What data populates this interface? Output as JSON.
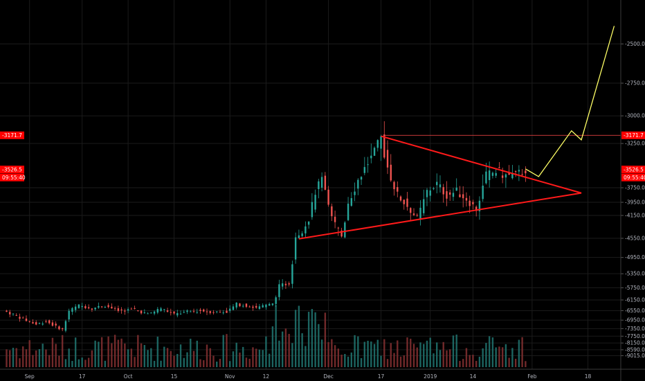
{
  "chart_data": {
    "type": "candlestick",
    "grid": true,
    "colors": {
      "background": "#000000",
      "up": "#26a69a",
      "down": "#ef5350",
      "volume_up": "#1f6f6a",
      "volume_down": "#7d2e2f",
      "grid": "#1b1b1b",
      "trendline": "#ff1a1a",
      "projection": "#ffff66",
      "level_line": "#e04040",
      "badge_bg": "#ff0000",
      "axis_text": "#b2b5be"
    },
    "y_scale": "reciprocal",
    "y_ticks": [
      "-2500.0",
      "-2750.0",
      "-3000.0",
      "-3250.0",
      "-3750.0",
      "-3950.0",
      "-4150.0",
      "-4550.0",
      "-4950.0",
      "-5350.0",
      "-5750.0",
      "-6150.0",
      "-6550.0",
      "-6950.0",
      "-7350.0",
      "-7750.0",
      "-8150.0",
      "-8590.0",
      "-9015.0"
    ],
    "x_ticks": [
      "Sep",
      "17",
      "Oct",
      "15",
      "Nov",
      "12",
      "Dec",
      "17",
      "2019",
      "14",
      "Feb",
      "18"
    ],
    "x_tick_dates": [
      "2018-09-01",
      "2018-09-17",
      "2018-10-01",
      "2018-10-15",
      "2018-11-01",
      "2018-11-12",
      "2018-12-01",
      "2018-12-17",
      "2019-01-01",
      "2019-01-14",
      "2019-02-01",
      "2019-02-18"
    ],
    "x_range": [
      "2018-08-23",
      "2019-02-28"
    ],
    "y_range": [
      -2330,
      -9600
    ],
    "series_close": [
      [
        "2018-08-24",
        -6550
      ],
      [
        "2018-08-27",
        -6700
      ],
      [
        "2018-08-30",
        -6900
      ],
      [
        "2018-09-03",
        -7150
      ],
      [
        "2018-09-06",
        -7000
      ],
      [
        "2018-09-09",
        -7250
      ],
      [
        "2018-09-11",
        -7400
      ],
      [
        "2018-09-13",
        -6550
      ],
      [
        "2018-09-16",
        -6350
      ],
      [
        "2018-09-20",
        -6450
      ],
      [
        "2018-09-24",
        -6350
      ],
      [
        "2018-09-28",
        -6550
      ],
      [
        "2018-10-03",
        -6500
      ],
      [
        "2018-10-07",
        -6700
      ],
      [
        "2018-10-11",
        -6450
      ],
      [
        "2018-10-15",
        -6700
      ],
      [
        "2018-10-19",
        -6600
      ],
      [
        "2018-10-23",
        -6550
      ],
      [
        "2018-10-27",
        -6600
      ],
      [
        "2018-10-31",
        -6600
      ],
      [
        "2018-11-03",
        -6300
      ],
      [
        "2018-11-06",
        -6350
      ],
      [
        "2018-11-09",
        -6450
      ],
      [
        "2018-11-12",
        -6350
      ],
      [
        "2018-11-14",
        -6300
      ],
      [
        "2018-11-16",
        -5700
      ],
      [
        "2018-11-19",
        -5600
      ],
      [
        "2018-11-21",
        -4500
      ],
      [
        "2018-11-23",
        -4400
      ],
      [
        "2018-11-25",
        -4200
      ],
      [
        "2018-11-27",
        -3800
      ],
      [
        "2018-11-29",
        -3650
      ],
      [
        "2018-12-02",
        -4200
      ],
      [
        "2018-12-05",
        -4500
      ],
      [
        "2018-12-07",
        -3950
      ],
      [
        "2018-12-10",
        -3650
      ],
      [
        "2018-12-13",
        -3450
      ],
      [
        "2018-12-15",
        -3350
      ],
      [
        "2018-12-17",
        -3200
      ],
      [
        "2018-12-19",
        -3500
      ],
      [
        "2018-12-22",
        -3850
      ],
      [
        "2018-12-25",
        -4000
      ],
      [
        "2018-12-28",
        -4200
      ],
      [
        "2018-12-31",
        -3800
      ],
      [
        "2019-01-03",
        -3700
      ],
      [
        "2019-01-06",
        -3850
      ],
      [
        "2019-01-09",
        -3800
      ],
      [
        "2019-01-12",
        -3900
      ],
      [
        "2019-01-15",
        -4050
      ],
      [
        "2019-01-18",
        -3600
      ],
      [
        "2019-01-21",
        -3550
      ],
      [
        "2019-01-24",
        -3600
      ],
      [
        "2019-01-27",
        -3600
      ],
      [
        "2019-01-30",
        -3527
      ]
    ],
    "triangle": {
      "upper": [
        [
          "2018-12-17",
          -3180
        ],
        [
          "2019-02-16",
          -3820
        ]
      ],
      "lower": [
        [
          "2018-11-22",
          -4560
        ],
        [
          "2019-02-16",
          -3820
        ]
      ]
    },
    "projection": [
      [
        "2019-01-30",
        -3520
      ],
      [
        "2019-02-03",
        -3610
      ],
      [
        "2019-02-13",
        -3130
      ],
      [
        "2019-02-16",
        -3215
      ],
      [
        "2019-02-26",
        -2400
      ]
    ],
    "levels": [
      {
        "price": -3171.7,
        "label": "-3171.7",
        "from": "2018-12-18"
      }
    ],
    "last_price": {
      "price": -3526.5,
      "label": "-3526.5",
      "countdown": "09:55:40"
    }
  }
}
